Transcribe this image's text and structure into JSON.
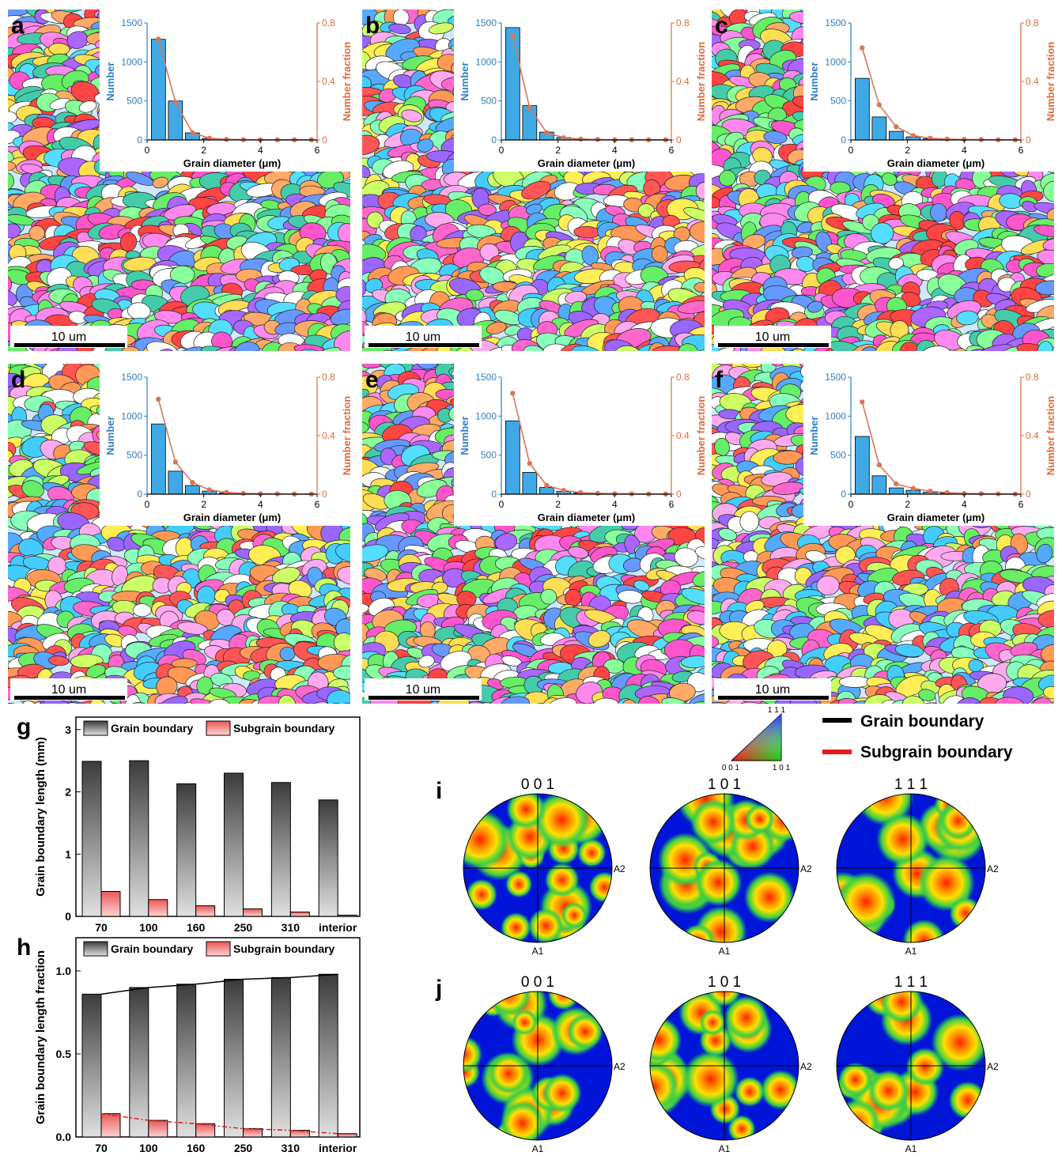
{
  "colors": {
    "number_axis": "#2f7fc1",
    "fraction_axis": "#e06a3c",
    "bar_blue": "#3fa9e6",
    "line_red": "#d9765c",
    "subgrain_red": "#f07a7a",
    "grain_black": "#000000",
    "subgrain_line": "#e41a1c",
    "pole_blue": "#0015d8"
  },
  "panels": {
    "letters": [
      "a",
      "b",
      "c",
      "d",
      "e",
      "f"
    ],
    "scale_bar_label": "10 um"
  },
  "inset_common": {
    "x_label": "Grain diameter (μm)",
    "y_left_label": "Number",
    "y_right_label": "Number fraction",
    "x_ticks": [
      "0",
      "2",
      "4",
      "6"
    ],
    "y_left_ticks": [
      "0",
      "500",
      "1000",
      "1500"
    ],
    "y_right_ticks": [
      "0",
      "0.4",
      "0.8"
    ]
  },
  "chart_data": [
    {
      "type": "bar",
      "panel": "a",
      "xlabel": "Grain diameter (μm)",
      "ylabel": "Number",
      "ylabel_right": "Number fraction",
      "xlim": [
        0,
        6
      ],
      "ylim": [
        0,
        1500
      ],
      "ylim_right": [
        0,
        0.8
      ],
      "bin_centers": [
        0.4,
        1.0,
        1.6,
        2.2,
        2.8,
        3.4,
        4.0,
        4.6,
        5.2,
        5.8
      ],
      "counts": [
        1290,
        500,
        90,
        20,
        8,
        4,
        2,
        1,
        1,
        1
      ],
      "fraction": [
        0.69,
        0.26,
        0.05,
        0.012,
        0.004,
        0.002,
        0.001,
        0.001,
        0.001,
        0.001
      ]
    },
    {
      "type": "bar",
      "panel": "b",
      "xlabel": "Grain diameter (μm)",
      "ylabel": "Number",
      "ylabel_right": "Number fraction",
      "xlim": [
        0,
        6
      ],
      "ylim": [
        0,
        1500
      ],
      "ylim_right": [
        0,
        0.8
      ],
      "bin_centers": [
        0.4,
        1.0,
        1.6,
        2.2,
        2.8,
        3.4,
        4.0,
        4.6,
        5.2,
        5.8
      ],
      "counts": [
        1440,
        440,
        100,
        30,
        12,
        5,
        3,
        2,
        1,
        1
      ],
      "fraction": [
        0.71,
        0.22,
        0.05,
        0.015,
        0.006,
        0.003,
        0.001,
        0.001,
        0.001,
        0.001
      ]
    },
    {
      "type": "bar",
      "panel": "c",
      "xlabel": "Grain diameter (μm)",
      "ylabel": "Number",
      "ylabel_right": "Number fraction",
      "xlim": [
        0,
        6
      ],
      "ylim": [
        0,
        1500
      ],
      "ylim_right": [
        0,
        0.8
      ],
      "bin_centers": [
        0.4,
        1.0,
        1.6,
        2.2,
        2.8,
        3.4,
        4.0,
        4.6,
        5.2,
        5.8
      ],
      "counts": [
        790,
        295,
        110,
        40,
        15,
        8,
        4,
        2,
        1,
        1
      ],
      "fraction": [
        0.63,
        0.24,
        0.09,
        0.03,
        0.012,
        0.006,
        0.003,
        0.002,
        0.001,
        0.001
      ]
    },
    {
      "type": "bar",
      "panel": "d",
      "xlabel": "Grain diameter (μm)",
      "ylabel": "Number",
      "ylabel_right": "Number fraction",
      "xlim": [
        0,
        6
      ],
      "ylim": [
        0,
        1500
      ],
      "ylim_right": [
        0,
        0.8
      ],
      "bin_centers": [
        0.4,
        1.0,
        1.6,
        2.2,
        2.8,
        3.4,
        4.0,
        4.6,
        5.2,
        5.8
      ],
      "counts": [
        900,
        295,
        110,
        40,
        15,
        8,
        4,
        2,
        1,
        1
      ],
      "fraction": [
        0.65,
        0.22,
        0.08,
        0.03,
        0.012,
        0.006,
        0.003,
        0.002,
        0.001,
        0.001
      ]
    },
    {
      "type": "bar",
      "panel": "e",
      "xlabel": "Grain diameter (μm)",
      "ylabel": "Number",
      "ylabel_right": "Number fraction",
      "xlim": [
        0,
        6
      ],
      "ylim": [
        0,
        1500
      ],
      "ylim_right": [
        0,
        0.8
      ],
      "bin_centers": [
        0.4,
        1.0,
        1.6,
        2.2,
        2.8,
        3.4,
        4.0,
        4.6,
        5.2,
        5.8
      ],
      "counts": [
        940,
        280,
        85,
        35,
        15,
        8,
        4,
        2,
        1,
        1
      ],
      "fraction": [
        0.69,
        0.21,
        0.06,
        0.026,
        0.011,
        0.006,
        0.003,
        0.002,
        0.001,
        0.001
      ]
    },
    {
      "type": "bar",
      "panel": "f",
      "xlabel": "Grain diameter (μm)",
      "ylabel": "Number",
      "ylabel_right": "Number fraction",
      "xlim": [
        0,
        6
      ],
      "ylim": [
        0,
        1500
      ],
      "ylim_right": [
        0,
        0.8
      ],
      "bin_centers": [
        0.4,
        1.0,
        1.6,
        2.2,
        2.8,
        3.4,
        4.0,
        4.6,
        5.2,
        5.8
      ],
      "counts": [
        740,
        235,
        80,
        50,
        25,
        12,
        6,
        3,
        2,
        1
      ],
      "fraction": [
        0.63,
        0.2,
        0.07,
        0.04,
        0.02,
        0.01,
        0.005,
        0.003,
        0.002,
        0.001
      ]
    },
    {
      "type": "bar",
      "panel": "g",
      "categories": [
        "70",
        "100",
        "160",
        "250",
        "310",
        "interior"
      ],
      "series": [
        {
          "name": "Grain boundary",
          "values": [
            2.49,
            2.5,
            2.13,
            2.3,
            2.15,
            1.87
          ]
        },
        {
          "name": "Subgrain boundary",
          "values": [
            0.4,
            0.27,
            0.17,
            0.12,
            0.07,
            0.02
          ]
        }
      ],
      "xlabel": "",
      "ylabel": "Grain boundary length (mm)",
      "ylim": [
        0,
        3.2
      ],
      "y_ticks": [
        "0",
        "1",
        "2",
        "3"
      ],
      "legend": "top"
    },
    {
      "type": "bar",
      "panel": "h",
      "categories": [
        "70",
        "100",
        "160",
        "250",
        "310",
        "interior"
      ],
      "series": [
        {
          "name": "Grain boundary",
          "values": [
            0.86,
            0.9,
            0.92,
            0.95,
            0.96,
            0.98
          ]
        },
        {
          "name": "Subgrain boundary",
          "values": [
            0.14,
            0.1,
            0.08,
            0.05,
            0.04,
            0.02
          ]
        }
      ],
      "xlabel": "",
      "ylabel": "Grain boundary length fraction",
      "ylim": [
        0,
        1.2
      ],
      "y_ticks": [
        "0.0",
        "0.5",
        "1.0"
      ],
      "legend": "top"
    }
  ],
  "legend_right": {
    "grain": "Grain boundary",
    "subgrain": "Subgrain boundary",
    "ipf": {
      "top": "1 1 1",
      "left": "0 0 1",
      "right": "1 0 1"
    }
  },
  "pole_figures": {
    "rows": [
      {
        "letter": "i"
      },
      {
        "letter": "j"
      }
    ],
    "titles": [
      "0 0 1",
      "1 0 1",
      "1 1 1"
    ],
    "axis_a1": "A1",
    "axis_a2": "A2"
  }
}
